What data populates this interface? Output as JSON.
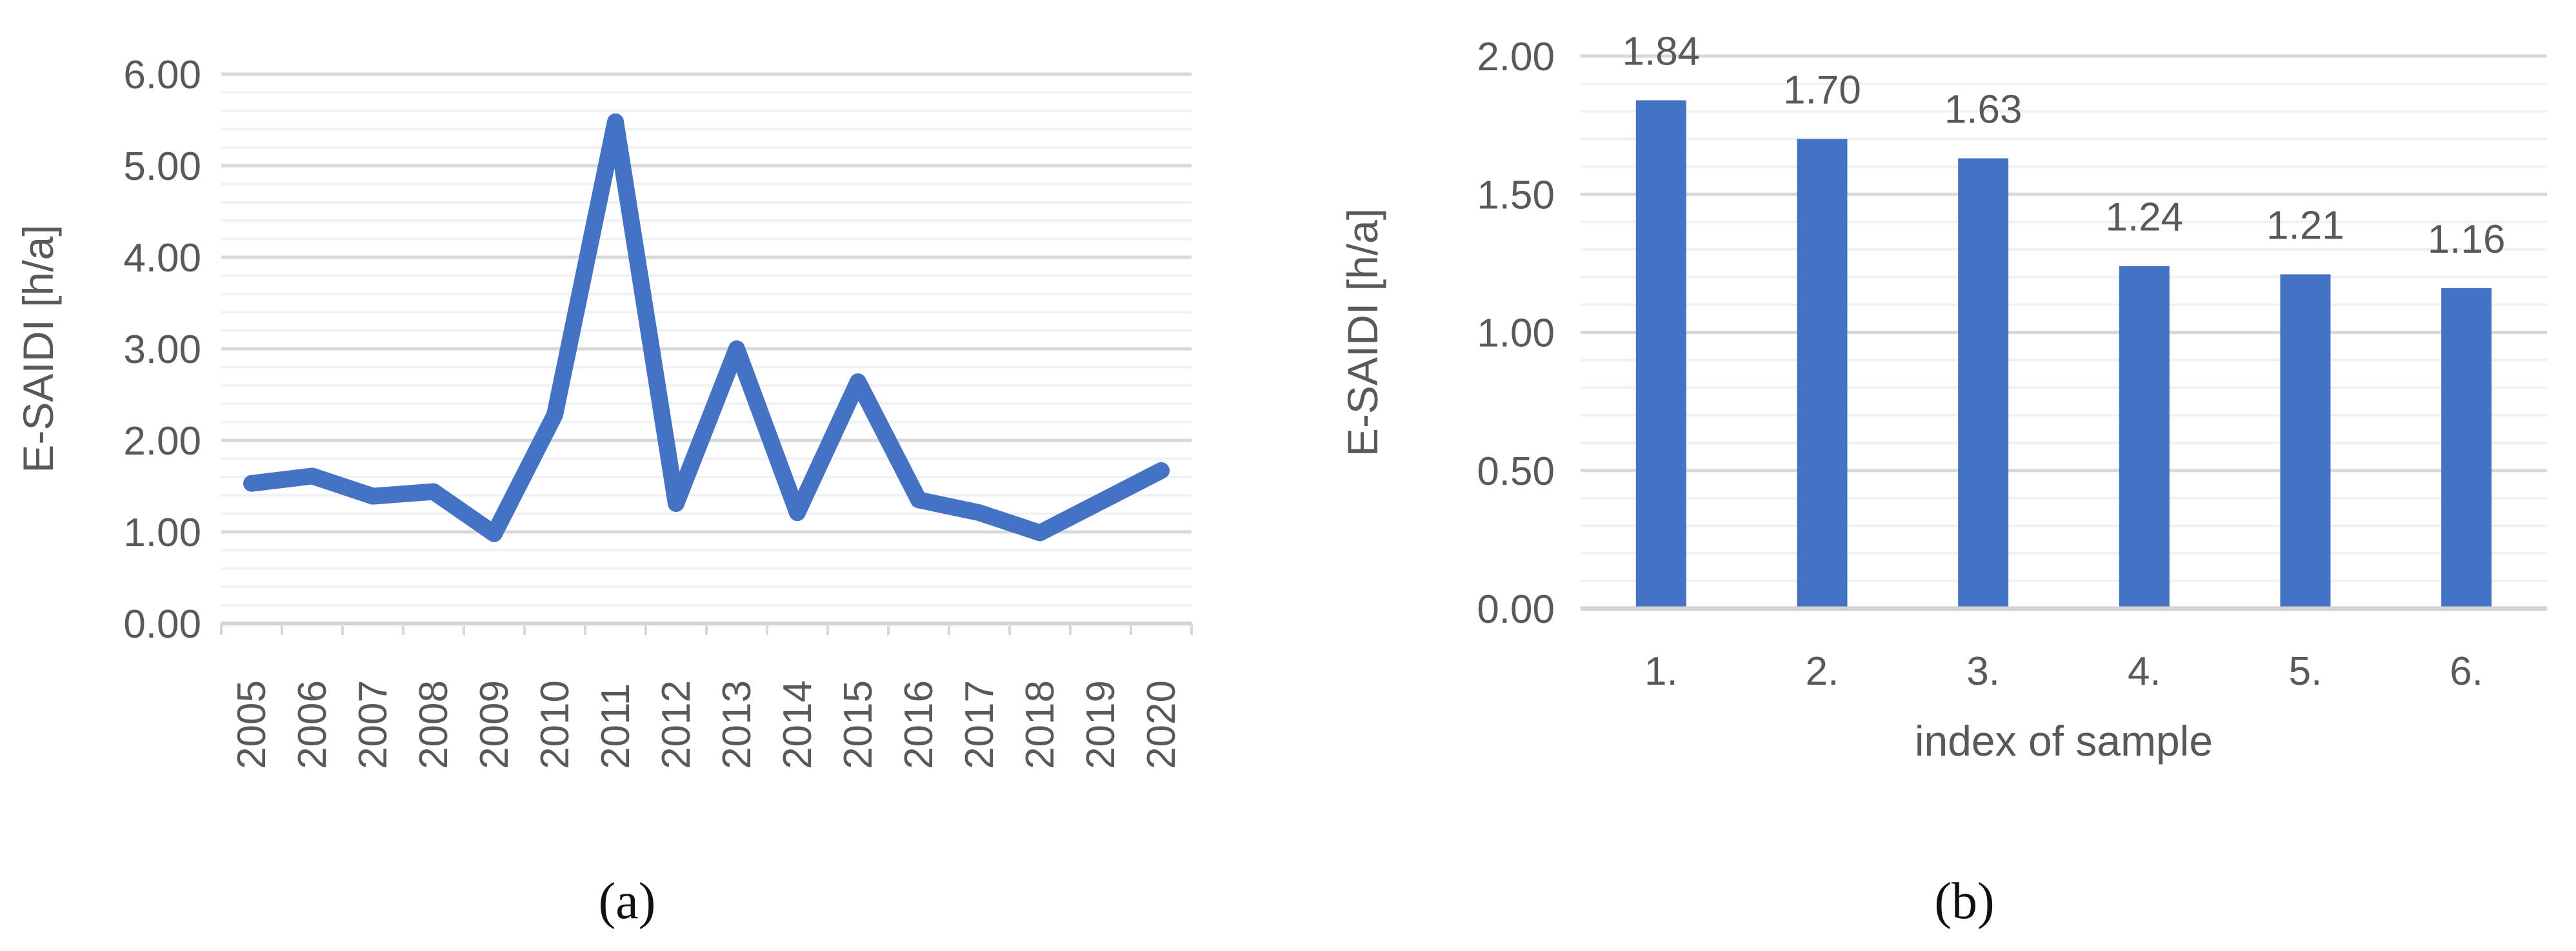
{
  "figure": {
    "captions": {
      "a": "(a)",
      "b": "(b)"
    },
    "colors": {
      "accent": "#4472C4",
      "grid_minor": "#F1F1F1",
      "grid_major": "#D8D8D8",
      "axis_line": "#D2D2D2",
      "tick_mark": "#D8D8D8",
      "text": "#595959",
      "caption_text": "#111111",
      "background": "#FFFFFF"
    }
  },
  "chart_data": [
    {
      "id": "a",
      "type": "line",
      "title": "",
      "xlabel": "",
      "ylabel": "E-SAIDI [h/a]",
      "categories": [
        "2005",
        "2006",
        "2007",
        "2008",
        "2009",
        "2010",
        "2011",
        "2012",
        "2013",
        "2014",
        "2015",
        "2016",
        "2017",
        "2018",
        "2019",
        "2020"
      ],
      "series": [
        {
          "name": "E-SAIDI",
          "values": [
            1.53,
            1.61,
            1.39,
            1.44,
            0.98,
            2.28,
            5.48,
            1.31,
            3.0,
            1.21,
            2.64,
            1.35,
            1.21,
            0.99,
            1.33,
            1.67
          ]
        }
      ],
      "ylim": [
        0,
        6
      ],
      "y_major_step": 1.0,
      "y_minor_step": 0.2,
      "y_tick_labels": [
        "0.00",
        "1.00",
        "2.00",
        "3.00",
        "4.00",
        "5.00",
        "6.00"
      ],
      "x_tick_label_rotation": -90,
      "grid": "horizontal minor+major, no vertical",
      "legend": "none",
      "caption": "(a)"
    },
    {
      "id": "b",
      "type": "bar",
      "title": "",
      "xlabel": "index of sample",
      "ylabel": "E-SAIDI [h/a]",
      "categories": [
        "1.",
        "2.",
        "3.",
        "4.",
        "5.",
        "6."
      ],
      "values": [
        1.84,
        1.7,
        1.63,
        1.24,
        1.21,
        1.16
      ],
      "data_labels": [
        "1.84",
        "1.70",
        "1.63",
        "1.24",
        "1.21",
        "1.16"
      ],
      "ylim": [
        0,
        2
      ],
      "y_major_step": 0.5,
      "y_minor_step": 0.1,
      "y_tick_labels": [
        "0.00",
        "0.50",
        "1.00",
        "1.50",
        "2.00"
      ],
      "x_tick_label_rotation": 0,
      "grid": "horizontal minor+major, no vertical",
      "legend": "none",
      "caption": "(b)"
    }
  ]
}
